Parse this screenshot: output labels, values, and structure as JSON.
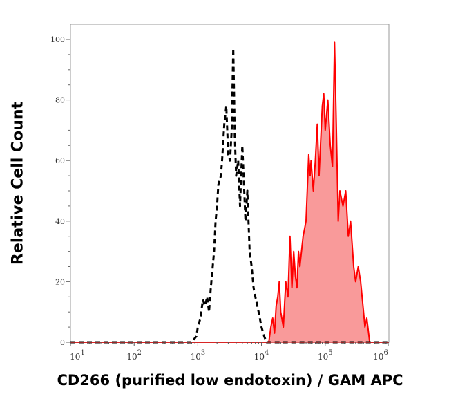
{
  "chart_data": {
    "type": "area",
    "title": "",
    "xlabel": "CD266 (purified low endotoxin) / GAM APC",
    "ylabel": "Relative Cell Count",
    "xscale": "log",
    "xlim": [
      10,
      1000000
    ],
    "ylim": [
      0,
      100
    ],
    "xticks": [
      {
        "exp": "1"
      },
      {
        "exp": "2"
      },
      {
        "exp": "3"
      },
      {
        "exp": "4"
      },
      {
        "exp": "5"
      },
      {
        "exp": "6"
      }
    ],
    "xtick_base": "10",
    "yticks": [
      "0",
      "20",
      "40",
      "60",
      "80",
      "100"
    ],
    "grid": false,
    "series": [
      {
        "style": "dashed",
        "color": "#000000",
        "fill": null,
        "x": [
          10,
          800,
          950,
          1000,
          1100,
          1200,
          1300,
          1400,
          1500,
          1600,
          1800,
          1900,
          2000,
          2100,
          2300,
          2400,
          2600,
          2800,
          3000,
          3200,
          3400,
          3600,
          3800,
          4000,
          4300,
          4600,
          5000,
          5300,
          5600,
          6000,
          6500,
          7000,
          7500,
          8000,
          9000,
          10000,
          11000,
          12000,
          1000000
        ],
        "y": [
          0,
          0,
          2,
          5,
          8,
          14,
          12,
          15,
          10,
          18,
          30,
          40,
          45,
          52,
          55,
          60,
          72,
          78,
          62,
          60,
          70,
          97,
          68,
          55,
          60,
          45,
          65,
          52,
          40,
          50,
          30,
          25,
          18,
          15,
          10,
          5,
          2,
          0,
          0
        ]
      },
      {
        "style": "solid",
        "color": "#ff0000",
        "fill": "#f99a9a",
        "x": [
          10,
          13000,
          14000,
          15000,
          16000,
          17000,
          18000,
          19000,
          20000,
          22000,
          24000,
          26000,
          28000,
          30000,
          32000,
          34000,
          36000,
          38000,
          40000,
          45000,
          50000,
          55000,
          58000,
          60000,
          65000,
          70000,
          75000,
          80000,
          90000,
          95000,
          100000,
          110000,
          120000,
          130000,
          140000,
          150000,
          160000,
          170000,
          190000,
          210000,
          230000,
          250000,
          280000,
          300000,
          330000,
          360000,
          400000,
          420000,
          450000,
          500000,
          1000000
        ],
        "y": [
          0,
          0,
          5,
          8,
          3,
          12,
          15,
          20,
          10,
          5,
          20,
          15,
          35,
          18,
          30,
          22,
          18,
          30,
          25,
          35,
          40,
          62,
          55,
          60,
          50,
          60,
          72,
          55,
          78,
          82,
          70,
          80,
          65,
          58,
          99,
          70,
          40,
          50,
          45,
          50,
          35,
          40,
          25,
          20,
          25,
          20,
          10,
          5,
          8,
          0,
          0
        ]
      }
    ]
  }
}
